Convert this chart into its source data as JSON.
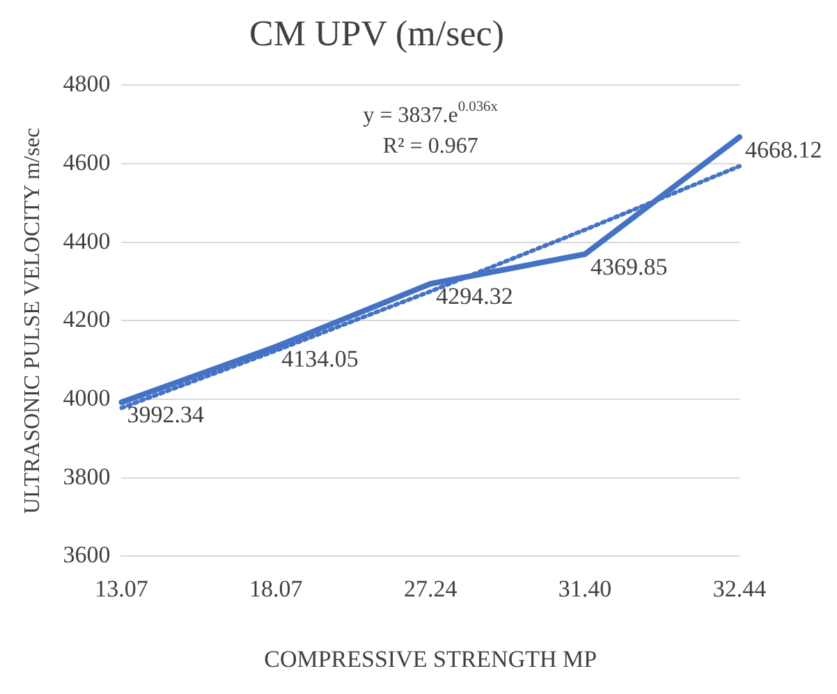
{
  "chart_data": {
    "type": "line",
    "title": "CM UPV (m/sec)",
    "xlabel": "COMPRESSIVE STRENGTH MP",
    "ylabel": "ULTRASONIC PULSE VELOCITY m/sec",
    "categories": [
      "13.07",
      "18.07",
      "27.24",
      "31.40",
      "32.44"
    ],
    "series": [
      {
        "color": "#4472c4",
        "values": [
          3992.34,
          4134.05,
          4294.32,
          4369.85,
          4668.12
        ],
        "value_labels": [
          "3992.34",
          "4134.05",
          "4294.32",
          "4369.85",
          "4668.12"
        ],
        "line_style": "solid"
      },
      {
        "color": "#4472c4",
        "values": [
          3978,
          4124,
          4275,
          4432,
          4594
        ],
        "line_style": "dotted"
      }
    ],
    "ylim": [
      3600,
      4800
    ],
    "yticks": [
      3600,
      3800,
      4000,
      4200,
      4400,
      4600,
      4800
    ],
    "grid": "y",
    "legend": false,
    "marker": "none",
    "annotations": [
      "y = 3837.e$^{0.036x}$",
      "R² = 0.967"
    ]
  }
}
